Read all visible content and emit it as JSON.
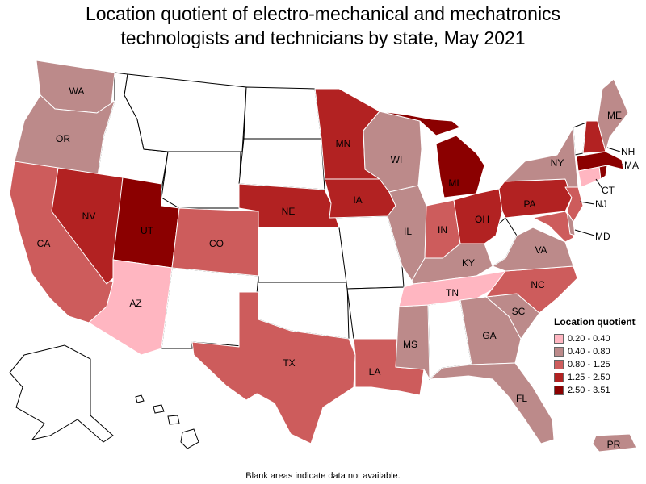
{
  "title_line1": "Location quotient of electro-mechanical and mechatronics",
  "title_line2": "technologists and technicians by state, May 2021",
  "footnote": "Blank areas indicate data not available.",
  "legend": {
    "title": "Location quotient",
    "items": [
      {
        "label": "0.20 - 0.40",
        "color": "#ffb6c1"
      },
      {
        "label": "0.40 - 0.80",
        "color": "#bc8a8a"
      },
      {
        "label": "0.80 - 1.25",
        "color": "#cd5c5c"
      },
      {
        "label": "1.25 - 2.50",
        "color": "#b22222"
      },
      {
        "label": "2.50 - 3.51",
        "color": "#8b0000"
      }
    ]
  },
  "states": {
    "WA": {
      "label": "WA",
      "color": "#bc8a8a"
    },
    "OR": {
      "label": "OR",
      "color": "#bc8a8a"
    },
    "CA": {
      "label": "CA",
      "color": "#cd5c5c"
    },
    "NV": {
      "label": "NV",
      "color": "#b22222"
    },
    "UT": {
      "label": "UT",
      "color": "#8b0000"
    },
    "AZ": {
      "label": "AZ",
      "color": "#ffb6c1"
    },
    "CO": {
      "label": "CO",
      "color": "#cd5c5c"
    },
    "NE": {
      "label": "NE",
      "color": "#b22222"
    },
    "TX": {
      "label": "TX",
      "color": "#cd5c5c"
    },
    "MN": {
      "label": "MN",
      "color": "#b22222"
    },
    "IA": {
      "label": "IA",
      "color": "#b22222"
    },
    "LA": {
      "label": "LA",
      "color": "#cd5c5c"
    },
    "WI": {
      "label": "WI",
      "color": "#bc8a8a"
    },
    "IL": {
      "label": "IL",
      "color": "#bc8a8a"
    },
    "MS": {
      "label": "MS",
      "color": "#bc8a8a"
    },
    "MI": {
      "label": "MI",
      "color": "#8b0000"
    },
    "IN": {
      "label": "IN",
      "color": "#cd5c5c"
    },
    "OH": {
      "label": "OH",
      "color": "#b22222"
    },
    "KY": {
      "label": "KY",
      "color": "#bc8a8a"
    },
    "TN": {
      "label": "TN",
      "color": "#ffb6c1"
    },
    "GA": {
      "label": "GA",
      "color": "#bc8a8a"
    },
    "FL": {
      "label": "FL",
      "color": "#bc8a8a"
    },
    "SC": {
      "label": "SC",
      "color": "#bc8a8a"
    },
    "NC": {
      "label": "NC",
      "color": "#cd5c5c"
    },
    "VA": {
      "label": "VA",
      "color": "#bc8a8a"
    },
    "PA": {
      "label": "PA",
      "color": "#b22222"
    },
    "NY": {
      "label": "NY",
      "color": "#bc8a8a"
    },
    "NJ": {
      "label": "NJ",
      "color": "#cd5c5c"
    },
    "MD": {
      "label": "MD",
      "color": "#cd5c5c"
    },
    "CT": {
      "label": "CT",
      "color": "#ffb6c1"
    },
    "MA": {
      "label": "MA",
      "color": "#8b0000"
    },
    "NH": {
      "label": "NH",
      "color": "#b22222"
    },
    "ME": {
      "label": "ME",
      "color": "#bc8a8a"
    },
    "VT": {
      "label": "",
      "color": "#ffffff"
    },
    "RI": {
      "label": "",
      "color": "#8b0000"
    },
    "DE": {
      "label": "",
      "color": "#bc8a8a"
    },
    "PR": {
      "label": "PR",
      "color": "#bc8a8a"
    }
  }
}
